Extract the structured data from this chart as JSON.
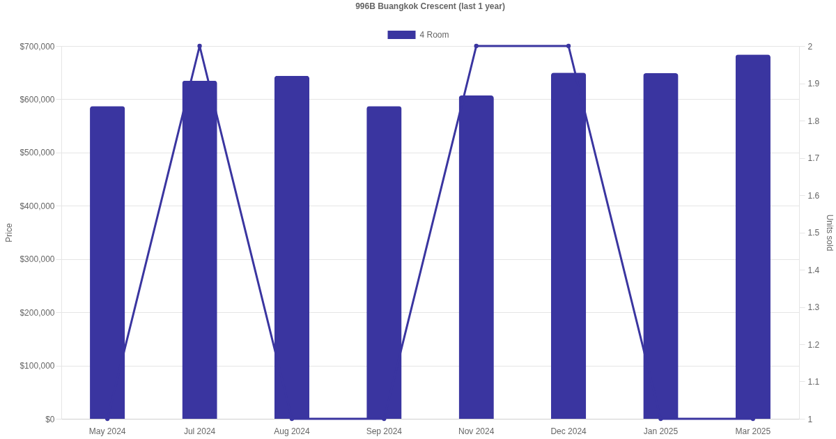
{
  "chart_data": {
    "type": "bar",
    "title": "996B Buangkok Crescent (last 1 year)",
    "categories": [
      "May 2024",
      "Jul 2024",
      "Aug 2024",
      "Sep 2024",
      "Nov 2024",
      "Dec 2024",
      "Jan 2025",
      "Mar 2025"
    ],
    "series": [
      {
        "name": "4 Room",
        "color": "#3a35a0",
        "values": [
          587000,
          635000,
          644000,
          587000,
          607000,
          650000,
          649000,
          684000
        ]
      },
      {
        "type": "line",
        "axis": "y2",
        "color": "#3a35a0",
        "values": [
          1,
          2,
          1,
          1,
          2,
          2,
          1,
          1
        ]
      }
    ],
    "ylabel": "Price",
    "y2label": "Units sold",
    "ylim": [
      0,
      700000
    ],
    "yticks": [
      {
        "value": 0,
        "label": "$0"
      },
      {
        "value": 100000,
        "label": "$100,000"
      },
      {
        "value": 200000,
        "label": "$200,000"
      },
      {
        "value": 300000,
        "label": "$300,000"
      },
      {
        "value": 400000,
        "label": "$400,000"
      },
      {
        "value": 500000,
        "label": "$500,000"
      },
      {
        "value": 600000,
        "label": "$600,000"
      },
      {
        "value": 700000,
        "label": "$700,000"
      }
    ],
    "y2lim": [
      1,
      2
    ],
    "y2ticks": [
      1,
      1.1,
      1.2,
      1.3,
      1.4,
      1.5,
      1.6,
      1.7,
      1.8,
      1.9,
      2
    ],
    "grid": "y",
    "legend": "top",
    "marker": "circle",
    "line_style": "solid"
  }
}
